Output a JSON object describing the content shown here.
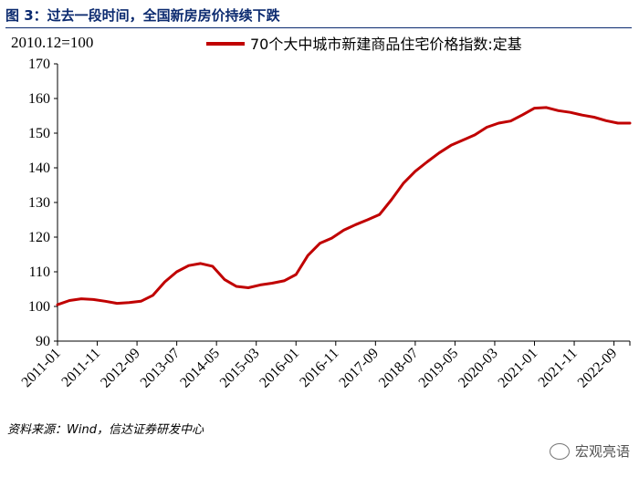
{
  "header": {
    "title": "图 3：过去一段时间，全国新房房价持续下跌",
    "unit_label": "2010.12=100"
  },
  "footer": {
    "source": "资料来源：Wind，信达证券研发中心",
    "watermark": "宏观亮语"
  },
  "icons": {
    "watermark_icon": "wechat-icon"
  },
  "colors": {
    "title": "#0b2a6f",
    "series": "#c00000"
  },
  "chart_data": {
    "type": "line",
    "title": "",
    "xlabel": "",
    "ylabel": "",
    "ylim": [
      90,
      170
    ],
    "yticks": [
      90,
      100,
      110,
      120,
      130,
      140,
      150,
      160,
      170
    ],
    "grid": false,
    "legend": "top-center",
    "xticks": [
      "2011-01",
      "2011-11",
      "2012-09",
      "2013-07",
      "2014-05",
      "2015-03",
      "2016-01",
      "2016-11",
      "2017-09",
      "2018-07",
      "2019-05",
      "2020-03",
      "2021-01",
      "2021-11",
      "2022-09"
    ],
    "x": [
      "2011-01",
      "2011-04",
      "2011-07",
      "2011-10",
      "2012-01",
      "2012-04",
      "2012-07",
      "2012-10",
      "2013-01",
      "2013-04",
      "2013-07",
      "2013-10",
      "2014-01",
      "2014-04",
      "2014-07",
      "2014-10",
      "2015-01",
      "2015-04",
      "2015-07",
      "2015-10",
      "2016-01",
      "2016-04",
      "2016-07",
      "2016-10",
      "2017-01",
      "2017-04",
      "2017-07",
      "2017-10",
      "2018-01",
      "2018-04",
      "2018-07",
      "2018-10",
      "2019-01",
      "2019-04",
      "2019-07",
      "2019-10",
      "2020-01",
      "2020-04",
      "2020-07",
      "2020-10",
      "2021-01",
      "2021-04",
      "2021-07",
      "2021-10",
      "2022-01",
      "2022-04",
      "2022-07",
      "2022-10",
      "2023-01"
    ],
    "series": [
      {
        "name": "70个大中城市新建商品住宅价格指数:定基",
        "values": [
          100.5,
          101.7,
          102.2,
          102.0,
          101.5,
          100.9,
          101.1,
          101.5,
          103.2,
          107.1,
          110.0,
          111.8,
          112.4,
          111.6,
          107.8,
          105.8,
          105.4,
          106.2,
          106.7,
          107.4,
          109.2,
          114.7,
          118.2,
          119.7,
          122.0,
          123.6,
          125.0,
          126.5,
          130.8,
          135.5,
          139.0,
          141.7,
          144.3,
          146.5,
          148.0,
          149.5,
          151.7,
          152.9,
          153.5,
          155.3,
          157.2,
          157.4,
          156.5,
          156.0,
          155.2,
          154.6,
          153.6,
          152.9,
          152.9
        ]
      }
    ]
  }
}
